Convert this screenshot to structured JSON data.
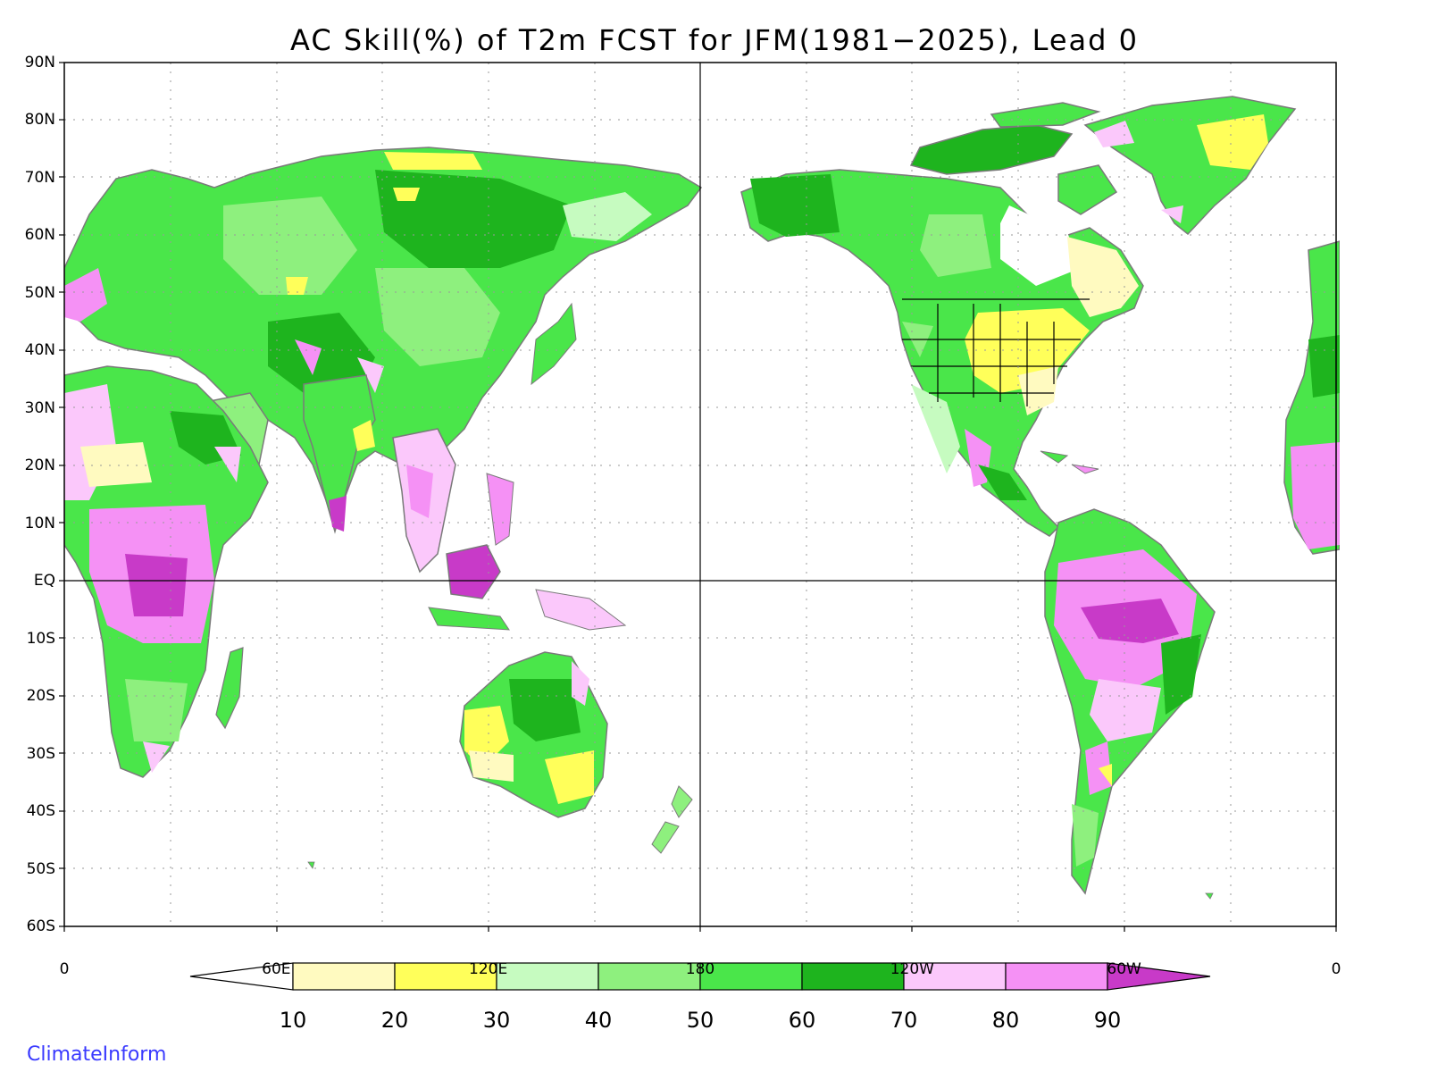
{
  "title": "AC Skill(%) of T2m FCST for JFM(1981−2025), Lead 0",
  "credit": "ClimateInform",
  "lat_labels": [
    "90N",
    "80N",
    "70N",
    "60N",
    "50N",
    "40N",
    "30N",
    "20N",
    "10N",
    "EQ",
    "10S",
    "20S",
    "30S",
    "40S",
    "50S",
    "60S"
  ],
  "lon_labels": [
    "0",
    "60E",
    "120E",
    "180",
    "120W",
    "60W",
    "0"
  ],
  "colorbar": {
    "bounds": [
      "10",
      "20",
      "30",
      "40",
      "50",
      "60",
      "70",
      "80",
      "90"
    ],
    "colors": [
      "#ffffff",
      "#fffac0",
      "#ffff5a",
      "#c6fbc0",
      "#8ef07e",
      "#4ae64a",
      "#1eb41e",
      "#fbc8fb",
      "#f591f5",
      "#c83ac8"
    ]
  },
  "legend_colors": {
    "land_outline": "#7a7a7a",
    "lake_outline": "#000000",
    "grid": "#999999"
  }
}
